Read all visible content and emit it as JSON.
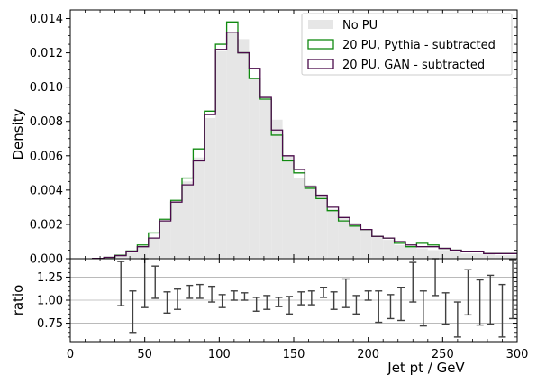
{
  "chart_data": [
    {
      "panel": "main",
      "type": "histogram",
      "ylabel": "Density",
      "xlim": [
        0,
        300
      ],
      "ylim": [
        0,
        0.0145
      ],
      "yticks": [
        "0.000",
        "0.002",
        "0.004",
        "0.006",
        "0.008",
        "0.010",
        "0.012",
        "0.014"
      ],
      "bin_width": 7.5,
      "bin_start": 15,
      "series": [
        {
          "name": "No PU",
          "style": "filled",
          "color": "#e6e6e6",
          "values": [
            2e-05,
            8e-05,
            0.00018,
            0.00035,
            0.0007,
            0.0012,
            0.0022,
            0.0033,
            0.0045,
            0.0059,
            0.0082,
            0.0121,
            0.0132,
            0.0128,
            0.0105,
            0.0093,
            0.0081,
            0.006,
            0.0047,
            0.0043,
            0.0037,
            0.0029,
            0.0024,
            0.0021,
            0.0017,
            0.0013,
            0.0011,
            0.0008,
            0.0007,
            0.0006,
            0.0005,
            0.0005,
            0.0004,
            0.0003,
            0.0003,
            0.0003,
            0.0002,
            0.0002
          ]
        },
        {
          "name": "20 PU, Pythia - subtracted",
          "style": "step",
          "color": "#108a10",
          "values": [
            2e-05,
            8e-05,
            0.0002,
            0.00045,
            0.0008,
            0.0015,
            0.0023,
            0.0034,
            0.0047,
            0.0064,
            0.0086,
            0.0125,
            0.0138,
            0.012,
            0.0105,
            0.0093,
            0.0072,
            0.0057,
            0.005,
            0.0041,
            0.0035,
            0.0028,
            0.0022,
            0.0019,
            0.0017,
            0.0013,
            0.0012,
            0.0009,
            0.0007,
            0.0009,
            0.0008,
            0.0006,
            0.0005,
            0.0004,
            0.0004,
            0.0003,
            0.0003,
            0.0003
          ]
        },
        {
          "name": "20 PU, GAN - subtracted",
          "style": "step",
          "color": "#4a0b4a",
          "values": [
            2e-05,
            8e-05,
            0.00018,
            0.0004,
            0.0007,
            0.0012,
            0.0022,
            0.0033,
            0.0043,
            0.0057,
            0.0084,
            0.0122,
            0.0132,
            0.012,
            0.0111,
            0.0094,
            0.0075,
            0.006,
            0.0052,
            0.0042,
            0.0037,
            0.003,
            0.0024,
            0.002,
            0.0017,
            0.0013,
            0.0012,
            0.001,
            0.0008,
            0.0007,
            0.0007,
            0.0006,
            0.0005,
            0.0004,
            0.0004,
            0.0003,
            0.0003,
            0.0003
          ]
        }
      ],
      "legend_position": "top-right"
    },
    {
      "panel": "ratio",
      "type": "errorbar",
      "xlabel": "Jet pt / GeV",
      "ylabel": "ratio",
      "xlim": [
        0,
        300
      ],
      "ylim": [
        0.55,
        1.45
      ],
      "xticks": [
        "0",
        "50",
        "100",
        "150",
        "200",
        "250",
        "300"
      ],
      "yticks": [
        "0.75",
        "1.00",
        "1.25"
      ],
      "grid": true,
      "color": "#404040",
      "x": [
        34,
        42,
        50,
        57,
        65,
        72,
        80,
        87,
        95,
        102,
        110,
        117,
        125,
        132,
        140,
        147,
        155,
        162,
        170,
        177,
        185,
        192,
        200,
        207,
        215,
        222,
        230,
        237,
        245,
        252,
        260,
        267,
        275,
        282,
        290,
        297
      ],
      "lower": [
        0.94,
        0.65,
        0.92,
        1.02,
        0.86,
        0.9,
        1.02,
        1.02,
        0.98,
        0.92,
        1.0,
        1.0,
        0.88,
        0.9,
        0.93,
        0.85,
        0.95,
        0.95,
        1.03,
        0.9,
        0.92,
        0.85,
        1.0,
        0.76,
        0.8,
        0.78,
        0.98,
        0.72,
        1.05,
        0.74,
        0.6,
        0.84,
        0.73,
        0.74,
        0.6,
        0.8
      ],
      "upper": [
        1.42,
        1.1,
        1.45,
        1.37,
        1.09,
        1.12,
        1.16,
        1.17,
        1.15,
        1.06,
        1.1,
        1.08,
        1.03,
        1.05,
        1.03,
        1.04,
        1.09,
        1.1,
        1.14,
        1.09,
        1.23,
        1.05,
        1.1,
        1.1,
        1.06,
        1.14,
        1.41,
        1.1,
        1.45,
        1.08,
        0.98,
        1.33,
        1.22,
        1.27,
        1.17,
        1.44
      ]
    }
  ]
}
